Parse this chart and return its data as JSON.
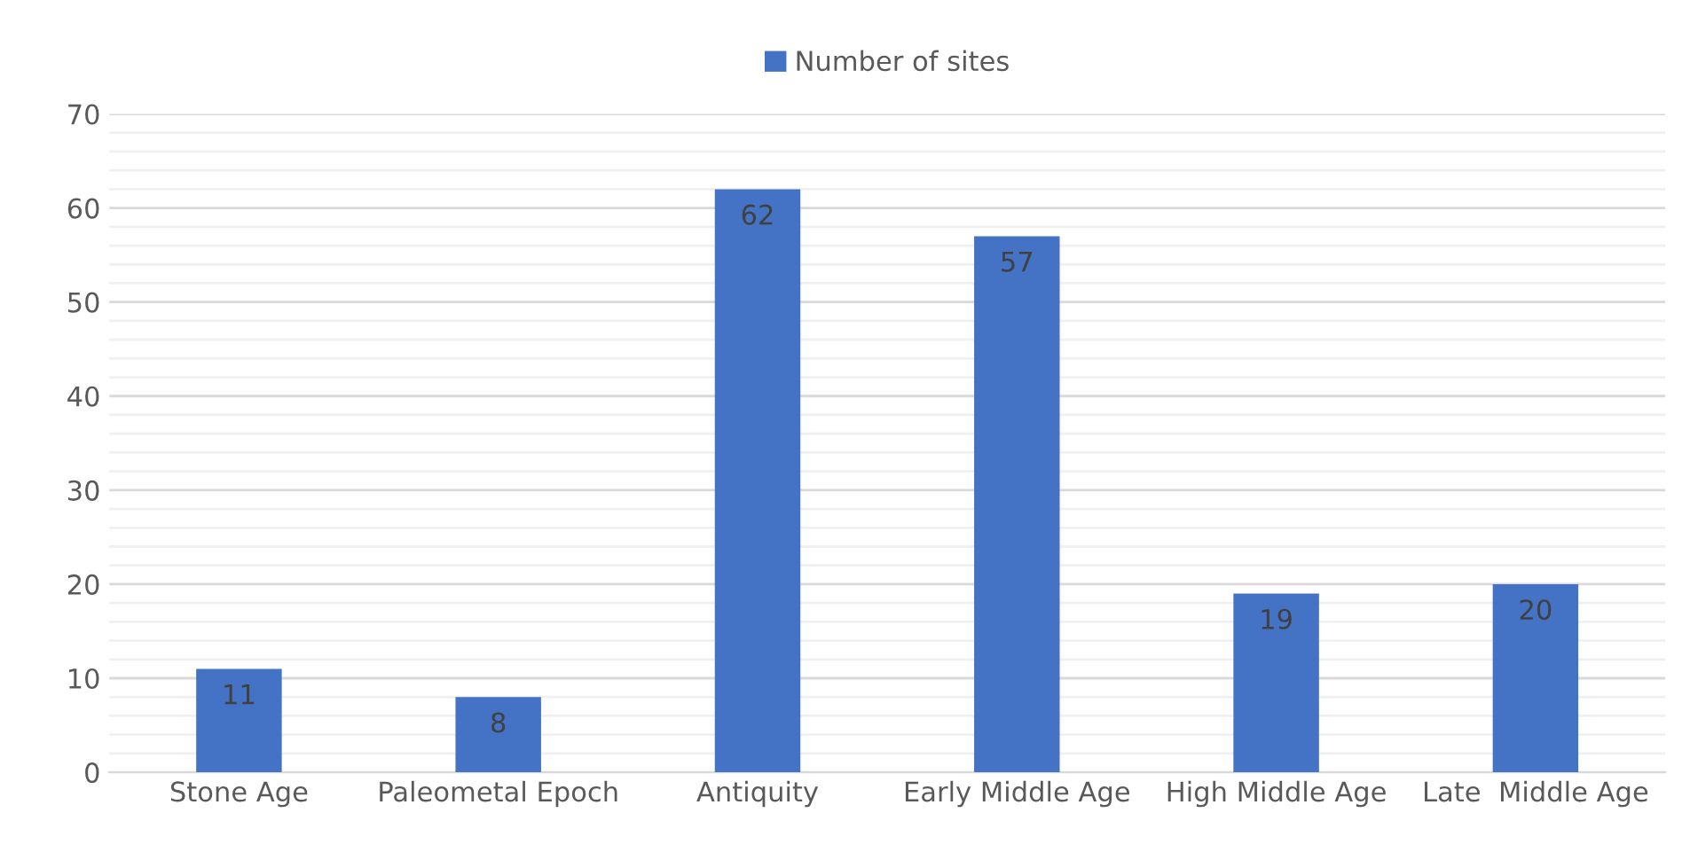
{
  "chart_data": {
    "type": "bar",
    "categories": [
      "Stone Age",
      "Paleometal Epoch",
      "Antiquity",
      "Early Middle Age",
      "High Middle Age",
      "Late  Middle Age"
    ],
    "series": [
      {
        "name": "Number of sites",
        "color": "#4472c4",
        "values": [
          11,
          8,
          62,
          57,
          19,
          20
        ]
      }
    ],
    "ylim": [
      0,
      70
    ],
    "yticks": [
      0,
      10,
      20,
      30,
      40,
      50,
      60,
      70
    ],
    "grid": "y",
    "legend": "top",
    "data_labels": true
  }
}
